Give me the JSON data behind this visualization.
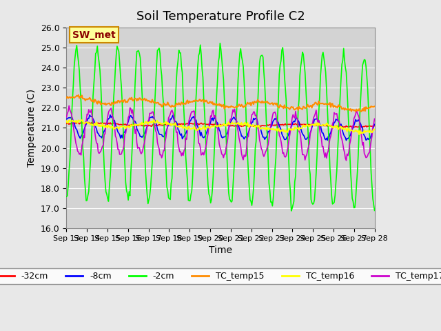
{
  "title": "Soil Temperature Profile C2",
  "xlabel": "Time",
  "ylabel": "Temperature (C)",
  "ylim": [
    16.0,
    26.0
  ],
  "yticks": [
    16.0,
    17.0,
    18.0,
    19.0,
    20.0,
    21.0,
    22.0,
    23.0,
    24.0,
    25.0,
    26.0
  ],
  "xtick_labels": [
    "Sep 13",
    "Sep 14",
    "Sep 15",
    "Sep 16",
    "Sep 17",
    "Sep 18",
    "Sep 19",
    "Sep 20",
    "Sep 21",
    "Sep 22",
    "Sep 23",
    "Sep 24",
    "Sep 25",
    "Sep 26",
    "Sep 27",
    "Sep 28"
  ],
  "legend_labels": [
    "-32cm",
    "-8cm",
    "-2cm",
    "TC_temp15",
    "TC_temp16",
    "TC_temp17"
  ],
  "colors": {
    "-32cm": "#FF0000",
    "-8cm": "#0000FF",
    "-2cm": "#00FF00",
    "TC_temp15": "#FF8C00",
    "TC_temp16": "#FFFF00",
    "TC_temp17": "#CC00CC"
  },
  "annotation": "SW_met",
  "annotation_color": "#8B0000",
  "annotation_bg": "#FFFF99",
  "annotation_border": "#CC8800",
  "background_color": "#E8E8E8",
  "plot_bg_color": "#D3D3D3",
  "grid_color": "#FFFFFF",
  "n_days": 15,
  "points_per_day": 24
}
